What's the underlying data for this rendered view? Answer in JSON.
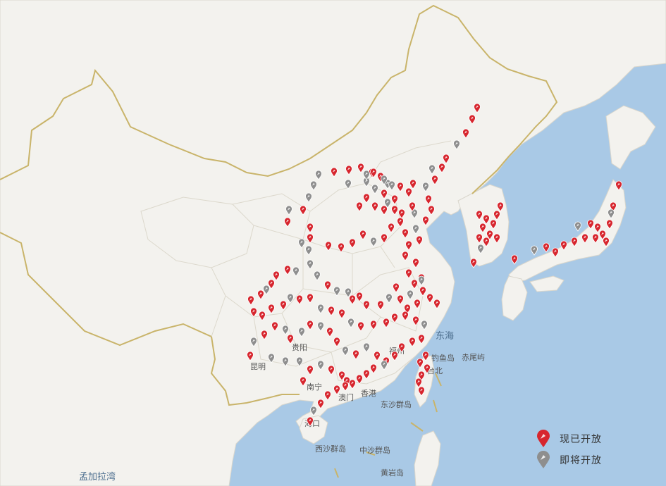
{
  "legend": {
    "open_label": "现已开放",
    "upcoming_label": "即将开放"
  },
  "colors": {
    "sea": "#a9c9e6",
    "land": "#f3f2ee",
    "border": "#c9b46a",
    "pin_open": "#d7262e",
    "pin_upcoming": "#8e8e8e"
  },
  "labels": {
    "east_sea": "东海",
    "bay_of_bengal": "孟加拉湾",
    "dongsha": "东沙群岛",
    "xisha": "西沙群岛",
    "zhongsha": "中沙群岛",
    "huangyan": "黄岩岛",
    "diaoyu": "钓鱼岛",
    "chiwei": "赤尾屿",
    "fuzhou": "福州",
    "hongkong": "香港",
    "kunming": "昆明",
    "guiyang": "贵阳",
    "nanning": "南宁",
    "aomen": "澳门",
    "haikou": "海口",
    "taibei": "台北"
  }
}
